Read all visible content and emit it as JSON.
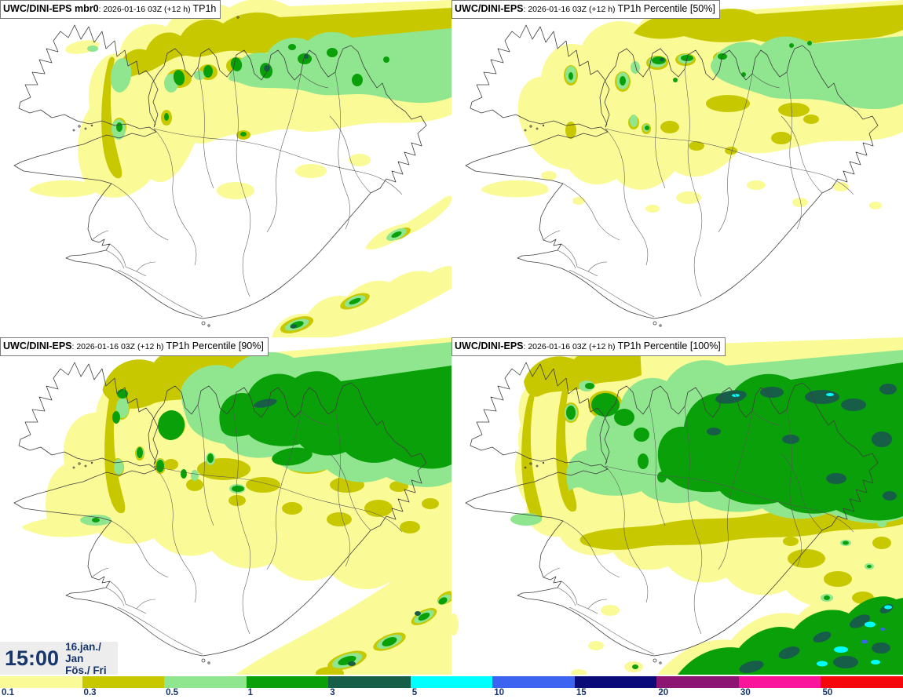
{
  "panels": [
    {
      "model": "UWC/DINI-EPS mbr0",
      "run": ": 2026-01-16 03Z (+12 h) ",
      "field": "TP1h"
    },
    {
      "model": "UWC/DINI-EPS",
      "run": ": 2026-01-16 03Z (+12 h) ",
      "field": "TP1h Percentile [50%]"
    },
    {
      "model": "UWC/DINI-EPS",
      "run": ": 2026-01-16 03Z (+12 h) ",
      "field": "TP1h Percentile [90%]"
    },
    {
      "model": "UWC/DINI-EPS",
      "run": ": 2026-01-16 03Z (+12 h) ",
      "field": "TP1h Percentile [100%]"
    }
  ],
  "clock": {
    "time": "15:00",
    "date": "16.jan./ Jan",
    "day": "Fös./ Fri"
  },
  "legend": {
    "stops": [
      {
        "label": "0.1",
        "color": "#FAFA96"
      },
      {
        "label": "0.3",
        "color": "#C8C800"
      },
      {
        "label": "0.5",
        "color": "#8FE68F"
      },
      {
        "label": "1",
        "color": "#0AA00A"
      },
      {
        "label": "3",
        "color": "#175E49"
      },
      {
        "label": "5",
        "color": "#00FFFF"
      },
      {
        "label": "10",
        "color": "#3C64F0"
      },
      {
        "label": "15",
        "color": "#0A0A78"
      },
      {
        "label": "20",
        "color": "#8C1473"
      },
      {
        "label": "30",
        "color": "#FA149B"
      },
      {
        "label": "50",
        "color": "#F5070C"
      }
    ],
    "label_color": "#17366B"
  }
}
